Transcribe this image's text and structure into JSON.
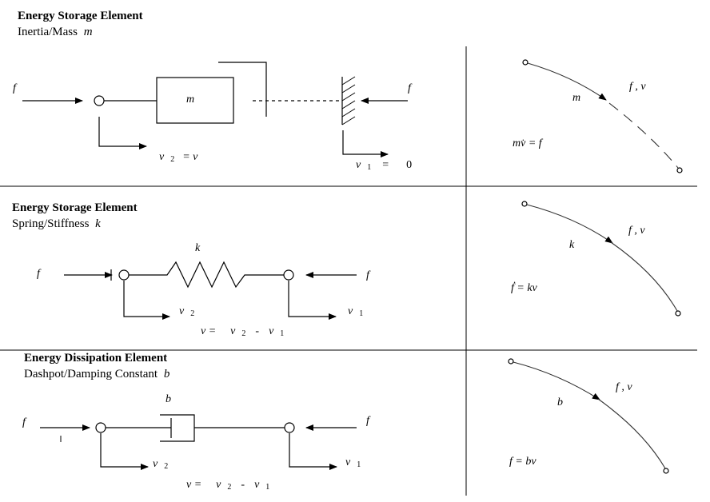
{
  "sections": [
    {
      "title": "Energy Storage Element",
      "subtitle": "Inertia/Mass",
      "param": "m",
      "force_left": "f",
      "force_right": "f",
      "element_label": "m",
      "v2_label": "v",
      "v2_sub": "2",
      "v2_eq": "= v",
      "v1_label": "v",
      "v1_sub": "1",
      "v1_eq": "=",
      "v1_value": "0",
      "graph_edge_label": "m",
      "graph_fv": "f , v",
      "graph_equation": "mv̇ = f"
    },
    {
      "title": "Energy Storage Element",
      "subtitle": "Spring/Stiffness",
      "param": "k",
      "force_left": "f",
      "force_right": "f",
      "element_label": "k",
      "v2_label": "v",
      "v2_sub": "2",
      "v1_label": "v",
      "v1_sub": "1",
      "rel_v": "v =",
      "rel_v2": "v",
      "rel_v2_sub": "2",
      "rel_minus": "-",
      "rel_v1": "v",
      "rel_v1_sub": "1",
      "graph_edge_label": "k",
      "graph_fv": "f , v",
      "graph_equation": "ḟ = kv"
    },
    {
      "title": "Energy Dissipation Element",
      "subtitle": "Dashpot/Damping Constant",
      "param": "b",
      "force_left": "f",
      "force_right": "f",
      "element_label": "b",
      "v2_label": "v",
      "v2_sub": "2",
      "v1_label": "v",
      "v1_sub": "1",
      "rel_v": "v =",
      "rel_v2": "v",
      "rel_v2_sub": "2",
      "rel_minus": "-",
      "rel_v1": "v",
      "rel_v1_sub": "1",
      "graph_edge_label": "b",
      "graph_fv": "f , v",
      "graph_equation": "f = bv"
    }
  ]
}
